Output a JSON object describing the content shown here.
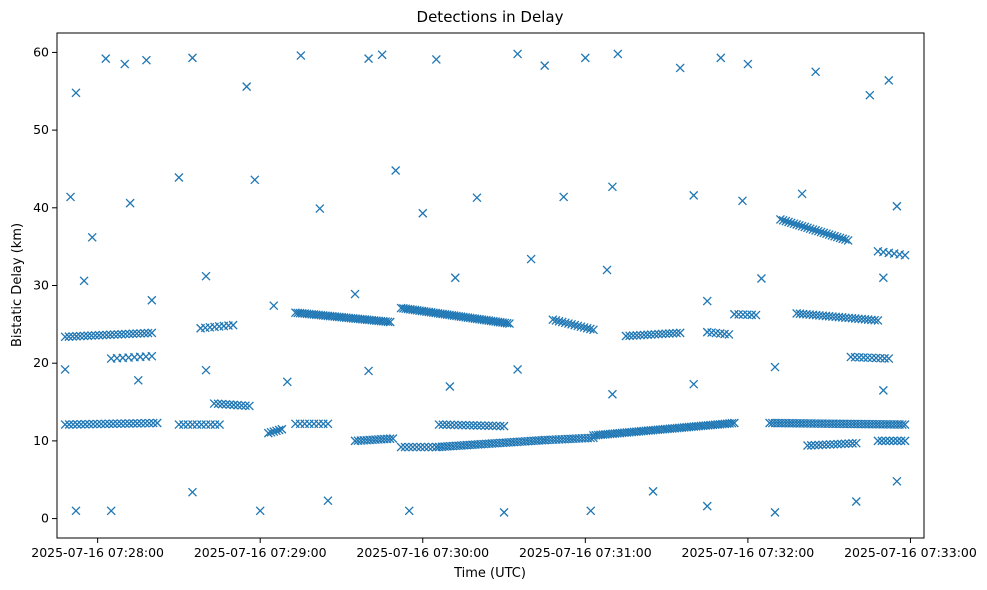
{
  "chart_data": {
    "type": "scatter",
    "title": "Detections in Delay",
    "xlabel": "Time (UTC)",
    "ylabel": "Bistatic Delay (km)",
    "marker": "x",
    "color": "#1f77b4",
    "grid": false,
    "legend": "none",
    "x_ticks": [
      "2025-07-16 07:28:00",
      "2025-07-16 07:29:00",
      "2025-07-16 07:30:00",
      "2025-07-16 07:31:00",
      "2025-07-16 07:32:00",
      "2025-07-16 07:33:00"
    ],
    "y_ticks": [
      "0",
      "10",
      "20",
      "30",
      "40",
      "50",
      "60"
    ],
    "xlim": [
      "2025-07-16 07:27:45",
      "2025-07-16 07:33:05"
    ],
    "ylim": [
      -2.5,
      62.5
    ],
    "tracks": [
      {
        "x_start": "2025-07-16 07:27:48",
        "x_end": "2025-07-16 07:28:20",
        "y_start": 23.4,
        "y_end": 23.9,
        "count": 24
      },
      {
        "x_start": "2025-07-16 07:28:05",
        "x_end": "2025-07-16 07:28:20",
        "y_start": 20.6,
        "y_end": 20.9,
        "count": 8
      },
      {
        "x_start": "2025-07-16 07:27:48",
        "x_end": "2025-07-16 07:28:22",
        "y_start": 12.1,
        "y_end": 12.3,
        "count": 24
      },
      {
        "x_start": "2025-07-16 07:28:30",
        "x_end": "2025-07-16 07:28:45",
        "y_start": 12.1,
        "y_end": 12.1,
        "count": 10
      },
      {
        "x_start": "2025-07-16 07:28:43",
        "x_end": "2025-07-16 07:28:56",
        "y_start": 14.8,
        "y_end": 14.5,
        "count": 10
      },
      {
        "x_start": "2025-07-16 07:28:38",
        "x_end": "2025-07-16 07:28:50",
        "y_start": 24.5,
        "y_end": 24.9,
        "count": 8
      },
      {
        "x_start": "2025-07-16 07:29:03",
        "x_end": "2025-07-16 07:29:08",
        "y_start": 11.0,
        "y_end": 11.5,
        "count": 6
      },
      {
        "x_start": "2025-07-16 07:29:13",
        "x_end": "2025-07-16 07:29:48",
        "y_start": 26.5,
        "y_end": 25.3,
        "count": 42
      },
      {
        "x_start": "2025-07-16 07:29:13",
        "x_end": "2025-07-16 07:29:25",
        "y_start": 12.2,
        "y_end": 12.2,
        "count": 8
      },
      {
        "x_start": "2025-07-16 07:29:35",
        "x_end": "2025-07-16 07:29:49",
        "y_start": 10.0,
        "y_end": 10.3,
        "count": 14
      },
      {
        "x_start": "2025-07-16 07:29:52",
        "x_end": "2025-07-16 07:30:32",
        "y_start": 27.1,
        "y_end": 25.1,
        "count": 48
      },
      {
        "x_start": "2025-07-16 07:29:52",
        "x_end": "2025-07-16 07:30:05",
        "y_start": 9.2,
        "y_end": 9.2,
        "count": 10
      },
      {
        "x_start": "2025-07-16 07:30:06",
        "x_end": "2025-07-16 07:30:30",
        "y_start": 12.1,
        "y_end": 11.9,
        "count": 18
      },
      {
        "x_start": "2025-07-16 07:30:05",
        "x_end": "2025-07-16 07:30:45",
        "y_start": 9.2,
        "y_end": 10.1,
        "count": 40
      },
      {
        "x_start": "2025-07-16 07:30:45",
        "x_end": "2025-07-16 07:31:03",
        "y_start": 10.1,
        "y_end": 10.4,
        "count": 18
      },
      {
        "x_start": "2025-07-16 07:30:48",
        "x_end": "2025-07-16 07:31:03",
        "y_start": 25.6,
        "y_end": 24.3,
        "count": 14
      },
      {
        "x_start": "2025-07-16 07:31:15",
        "x_end": "2025-07-16 07:31:35",
        "y_start": 23.5,
        "y_end": 23.9,
        "count": 16
      },
      {
        "x_start": "2025-07-16 07:31:03",
        "x_end": "2025-07-16 07:31:55",
        "y_start": 10.7,
        "y_end": 12.3,
        "count": 60
      },
      {
        "x_start": "2025-07-16 07:31:45",
        "x_end": "2025-07-16 07:31:53",
        "y_start": 24.0,
        "y_end": 23.7,
        "count": 6
      },
      {
        "x_start": "2025-07-16 07:31:55",
        "x_end": "2025-07-16 07:32:03",
        "y_start": 26.3,
        "y_end": 26.2,
        "count": 6
      },
      {
        "x_start": "2025-07-16 07:32:12",
        "x_end": "2025-07-16 07:32:37",
        "y_start": 38.5,
        "y_end": 35.8,
        "count": 26
      },
      {
        "x_start": "2025-07-16 07:32:18",
        "x_end": "2025-07-16 07:32:48",
        "y_start": 26.4,
        "y_end": 25.5,
        "count": 26
      },
      {
        "x_start": "2025-07-16 07:32:08",
        "x_end": "2025-07-16 07:32:58",
        "y_start": 12.3,
        "y_end": 12.1,
        "count": 50
      },
      {
        "x_start": "2025-07-16 07:32:22",
        "x_end": "2025-07-16 07:32:40",
        "y_start": 9.4,
        "y_end": 9.7,
        "count": 14
      },
      {
        "x_start": "2025-07-16 07:32:38",
        "x_end": "2025-07-16 07:32:52",
        "y_start": 20.8,
        "y_end": 20.6,
        "count": 10
      },
      {
        "x_start": "2025-07-16 07:32:48",
        "x_end": "2025-07-16 07:32:58",
        "y_start": 34.4,
        "y_end": 33.9,
        "count": 6
      },
      {
        "x_start": "2025-07-16 07:32:48",
        "x_end": "2025-07-16 07:32:58",
        "y_start": 10.0,
        "y_end": 10.0,
        "count": 8
      }
    ],
    "scatter_points": [
      [
        "2025-07-16 07:27:52",
        54.8
      ],
      [
        "2025-07-16 07:28:03",
        59.2
      ],
      [
        "2025-07-16 07:28:10",
        58.5
      ],
      [
        "2025-07-16 07:28:18",
        59.0
      ],
      [
        "2025-07-16 07:28:35",
        59.3
      ],
      [
        "2025-07-16 07:28:55",
        55.6
      ],
      [
        "2025-07-16 07:29:15",
        59.6
      ],
      [
        "2025-07-16 07:29:40",
        59.2
      ],
      [
        "2025-07-16 07:29:45",
        59.7
      ],
      [
        "2025-07-16 07:30:05",
        59.1
      ],
      [
        "2025-07-16 07:30:35",
        59.8
      ],
      [
        "2025-07-16 07:30:45",
        58.3
      ],
      [
        "2025-07-16 07:31:00",
        59.3
      ],
      [
        "2025-07-16 07:31:12",
        59.8
      ],
      [
        "2025-07-16 07:31:35",
        58.0
      ],
      [
        "2025-07-16 07:31:50",
        59.3
      ],
      [
        "2025-07-16 07:32:00",
        58.5
      ],
      [
        "2025-07-16 07:32:25",
        57.5
      ],
      [
        "2025-07-16 07:32:45",
        54.5
      ],
      [
        "2025-07-16 07:32:52",
        56.4
      ],
      [
        "2025-07-16 07:27:50",
        41.4
      ],
      [
        "2025-07-16 07:27:58",
        36.2
      ],
      [
        "2025-07-16 07:28:12",
        40.6
      ],
      [
        "2025-07-16 07:28:30",
        43.9
      ],
      [
        "2025-07-16 07:28:58",
        43.6
      ],
      [
        "2025-07-16 07:29:22",
        39.9
      ],
      [
        "2025-07-16 07:29:50",
        44.8
      ],
      [
        "2025-07-16 07:30:00",
        39.3
      ],
      [
        "2025-07-16 07:30:20",
        41.3
      ],
      [
        "2025-07-16 07:30:52",
        41.4
      ],
      [
        "2025-07-16 07:31:10",
        42.7
      ],
      [
        "2025-07-16 07:31:40",
        41.6
      ],
      [
        "2025-07-16 07:31:58",
        40.9
      ],
      [
        "2025-07-16 07:32:20",
        41.8
      ],
      [
        "2025-07-16 07:32:55",
        40.2
      ],
      [
        "2025-07-16 07:27:55",
        30.6
      ],
      [
        "2025-07-16 07:28:20",
        28.1
      ],
      [
        "2025-07-16 07:28:40",
        31.2
      ],
      [
        "2025-07-16 07:29:05",
        27.4
      ],
      [
        "2025-07-16 07:29:35",
        28.9
      ],
      [
        "2025-07-16 07:30:12",
        31.0
      ],
      [
        "2025-07-16 07:30:40",
        33.4
      ],
      [
        "2025-07-16 07:31:08",
        32.0
      ],
      [
        "2025-07-16 07:31:45",
        28.0
      ],
      [
        "2025-07-16 07:32:05",
        30.9
      ],
      [
        "2025-07-16 07:32:50",
        31.0
      ],
      [
        "2025-07-16 07:27:48",
        19.2
      ],
      [
        "2025-07-16 07:28:15",
        17.8
      ],
      [
        "2025-07-16 07:28:40",
        19.1
      ],
      [
        "2025-07-16 07:29:10",
        17.6
      ],
      [
        "2025-07-16 07:29:40",
        19.0
      ],
      [
        "2025-07-16 07:30:10",
        17.0
      ],
      [
        "2025-07-16 07:30:35",
        19.2
      ],
      [
        "2025-07-16 07:31:10",
        16.0
      ],
      [
        "2025-07-16 07:31:40",
        17.3
      ],
      [
        "2025-07-16 07:32:10",
        19.5
      ],
      [
        "2025-07-16 07:32:50",
        16.5
      ],
      [
        "2025-07-16 07:27:52",
        1.0
      ],
      [
        "2025-07-16 07:28:05",
        1.0
      ],
      [
        "2025-07-16 07:28:35",
        3.4
      ],
      [
        "2025-07-16 07:29:00",
        1.0
      ],
      [
        "2025-07-16 07:29:25",
        2.3
      ],
      [
        "2025-07-16 07:29:55",
        1.0
      ],
      [
        "2025-07-16 07:30:30",
        0.8
      ],
      [
        "2025-07-16 07:31:02",
        1.0
      ],
      [
        "2025-07-16 07:31:25",
        3.5
      ],
      [
        "2025-07-16 07:31:45",
        1.6
      ],
      [
        "2025-07-16 07:32:10",
        0.8
      ],
      [
        "2025-07-16 07:32:40",
        2.2
      ],
      [
        "2025-07-16 07:32:55",
        4.8
      ]
    ]
  }
}
